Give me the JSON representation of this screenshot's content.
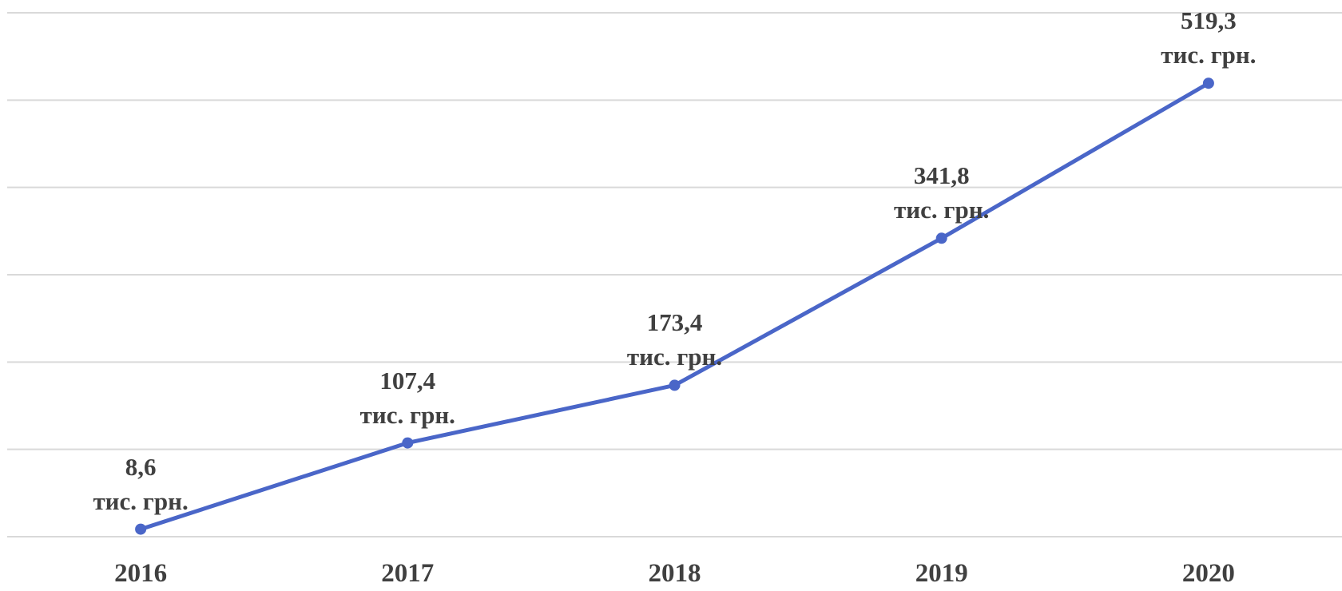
{
  "chart_data": {
    "type": "line",
    "categories": [
      "2016",
      "2017",
      "2018",
      "2019",
      "2020"
    ],
    "series": [
      {
        "name": "",
        "color": "#4a66c8",
        "values": [
          8.6,
          107.4,
          173.4,
          341.8,
          519.3
        ],
        "value_labels": [
          "8,6\nтис. грн.",
          "107,4\nтис. грн.",
          "173,4\nтис. грн.",
          "341,8\nтис. грн.",
          "519,3\nтис. грн."
        ]
      }
    ],
    "ylim": [
      0,
      600
    ],
    "yticks": [
      0,
      100,
      200,
      300,
      400,
      500,
      600
    ],
    "grid": true
  }
}
